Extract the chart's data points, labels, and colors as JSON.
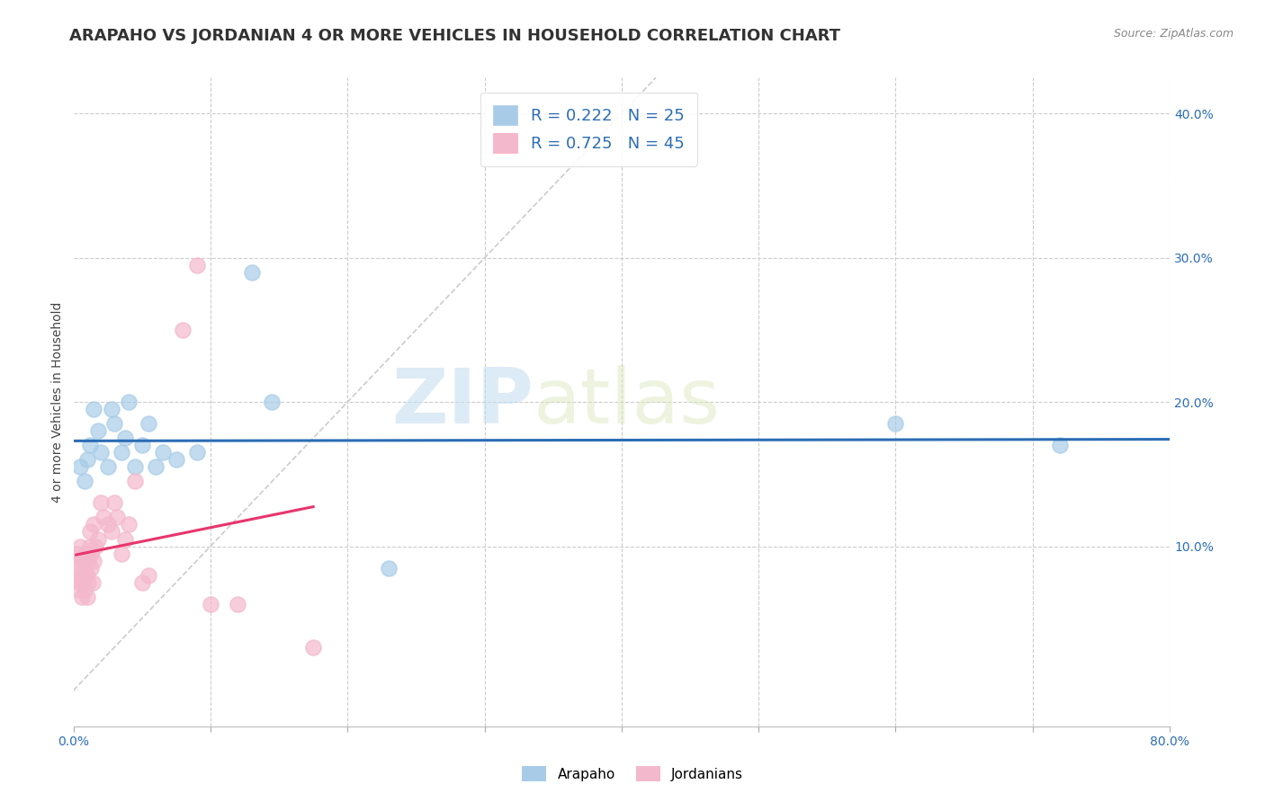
{
  "title": "ARAPAHO VS JORDANIAN 4 OR MORE VEHICLES IN HOUSEHOLD CORRELATION CHART",
  "source_text": "Source: ZipAtlas.com",
  "ylabel": "4 or more Vehicles in Household",
  "xlim": [
    0.0,
    0.8
  ],
  "ylim": [
    -0.025,
    0.425
  ],
  "xticks": [
    0.0,
    0.1,
    0.2,
    0.3,
    0.4,
    0.5,
    0.6,
    0.7,
    0.8
  ],
  "xticklabels": [
    "0.0%",
    "",
    "",
    "",
    "",
    "",
    "",
    "",
    "80.0%"
  ],
  "yticks": [
    0.0,
    0.1,
    0.2,
    0.3,
    0.4
  ],
  "right_yticklabels": [
    "",
    "10.0%",
    "20.0%",
    "30.0%",
    "40.0%"
  ],
  "watermark_zip": "ZIP",
  "watermark_atlas": "atlas",
  "legend_r1": "R = 0.222",
  "legend_n1": "N = 25",
  "legend_r2": "R = 0.725",
  "legend_n2": "N = 45",
  "arapaho_color": "#a8cce8",
  "jordanian_color": "#f4b8cc",
  "arapaho_line_color": "#2b6db5",
  "jordanian_line_color": "#e8356d",
  "diagonal_color": "#cccccc",
  "arapaho_points": [
    [
      0.005,
      0.155
    ],
    [
      0.008,
      0.145
    ],
    [
      0.01,
      0.16
    ],
    [
      0.012,
      0.17
    ],
    [
      0.015,
      0.195
    ],
    [
      0.018,
      0.18
    ],
    [
      0.02,
      0.165
    ],
    [
      0.025,
      0.155
    ],
    [
      0.028,
      0.195
    ],
    [
      0.03,
      0.185
    ],
    [
      0.035,
      0.165
    ],
    [
      0.038,
      0.175
    ],
    [
      0.04,
      0.2
    ],
    [
      0.045,
      0.155
    ],
    [
      0.05,
      0.17
    ],
    [
      0.055,
      0.185
    ],
    [
      0.06,
      0.155
    ],
    [
      0.065,
      0.165
    ],
    [
      0.075,
      0.16
    ],
    [
      0.09,
      0.165
    ],
    [
      0.13,
      0.29
    ],
    [
      0.145,
      0.2
    ],
    [
      0.23,
      0.085
    ],
    [
      0.6,
      0.185
    ],
    [
      0.72,
      0.17
    ]
  ],
  "jordanian_points": [
    [
      0.002,
      0.095
    ],
    [
      0.003,
      0.08
    ],
    [
      0.004,
      0.07
    ],
    [
      0.004,
      0.085
    ],
    [
      0.005,
      0.075
    ],
    [
      0.005,
      0.09
    ],
    [
      0.005,
      0.1
    ],
    [
      0.006,
      0.065
    ],
    [
      0.006,
      0.08
    ],
    [
      0.007,
      0.09
    ],
    [
      0.007,
      0.075
    ],
    [
      0.008,
      0.07
    ],
    [
      0.008,
      0.085
    ],
    [
      0.009,
      0.08
    ],
    [
      0.009,
      0.095
    ],
    [
      0.01,
      0.065
    ],
    [
      0.01,
      0.08
    ],
    [
      0.011,
      0.09
    ],
    [
      0.011,
      0.075
    ],
    [
      0.012,
      0.1
    ],
    [
      0.012,
      0.11
    ],
    [
      0.013,
      0.085
    ],
    [
      0.013,
      0.095
    ],
    [
      0.014,
      0.075
    ],
    [
      0.015,
      0.115
    ],
    [
      0.015,
      0.09
    ],
    [
      0.016,
      0.1
    ],
    [
      0.018,
      0.105
    ],
    [
      0.02,
      0.13
    ],
    [
      0.022,
      0.12
    ],
    [
      0.025,
      0.115
    ],
    [
      0.028,
      0.11
    ],
    [
      0.03,
      0.13
    ],
    [
      0.032,
      0.12
    ],
    [
      0.035,
      0.095
    ],
    [
      0.038,
      0.105
    ],
    [
      0.04,
      0.115
    ],
    [
      0.045,
      0.145
    ],
    [
      0.05,
      0.075
    ],
    [
      0.055,
      0.08
    ],
    [
      0.08,
      0.25
    ],
    [
      0.09,
      0.295
    ],
    [
      0.1,
      0.06
    ],
    [
      0.12,
      0.06
    ],
    [
      0.175,
      0.03
    ]
  ],
  "background_color": "#ffffff",
  "grid_color": "#cccccc",
  "title_fontsize": 13,
  "axis_fontsize": 10,
  "tick_fontsize": 10
}
